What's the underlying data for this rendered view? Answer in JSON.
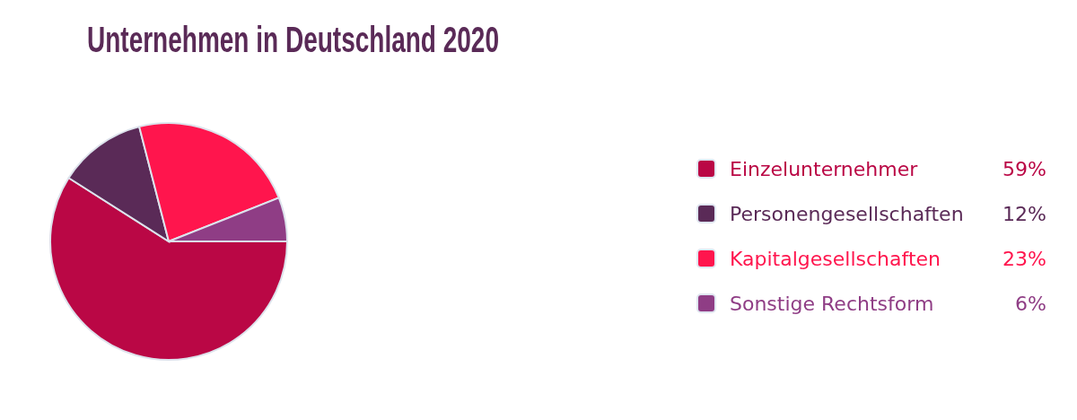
{
  "chart_data": {
    "type": "pie",
    "title": "Unternehmen in Deutschland 2020",
    "categories": [
      "Einzelunternehmer",
      "Personengesellschaften",
      "Kapitalgesellschaften",
      "Sonstige Rechtsform"
    ],
    "values": [
      59,
      12,
      23,
      6
    ],
    "value_labels": [
      "59%",
      "12%",
      "23%",
      "6%"
    ],
    "colors": [
      "#ba0745",
      "#5a2a57",
      "#ff154d",
      "#8f3d85"
    ],
    "legend": "right"
  }
}
